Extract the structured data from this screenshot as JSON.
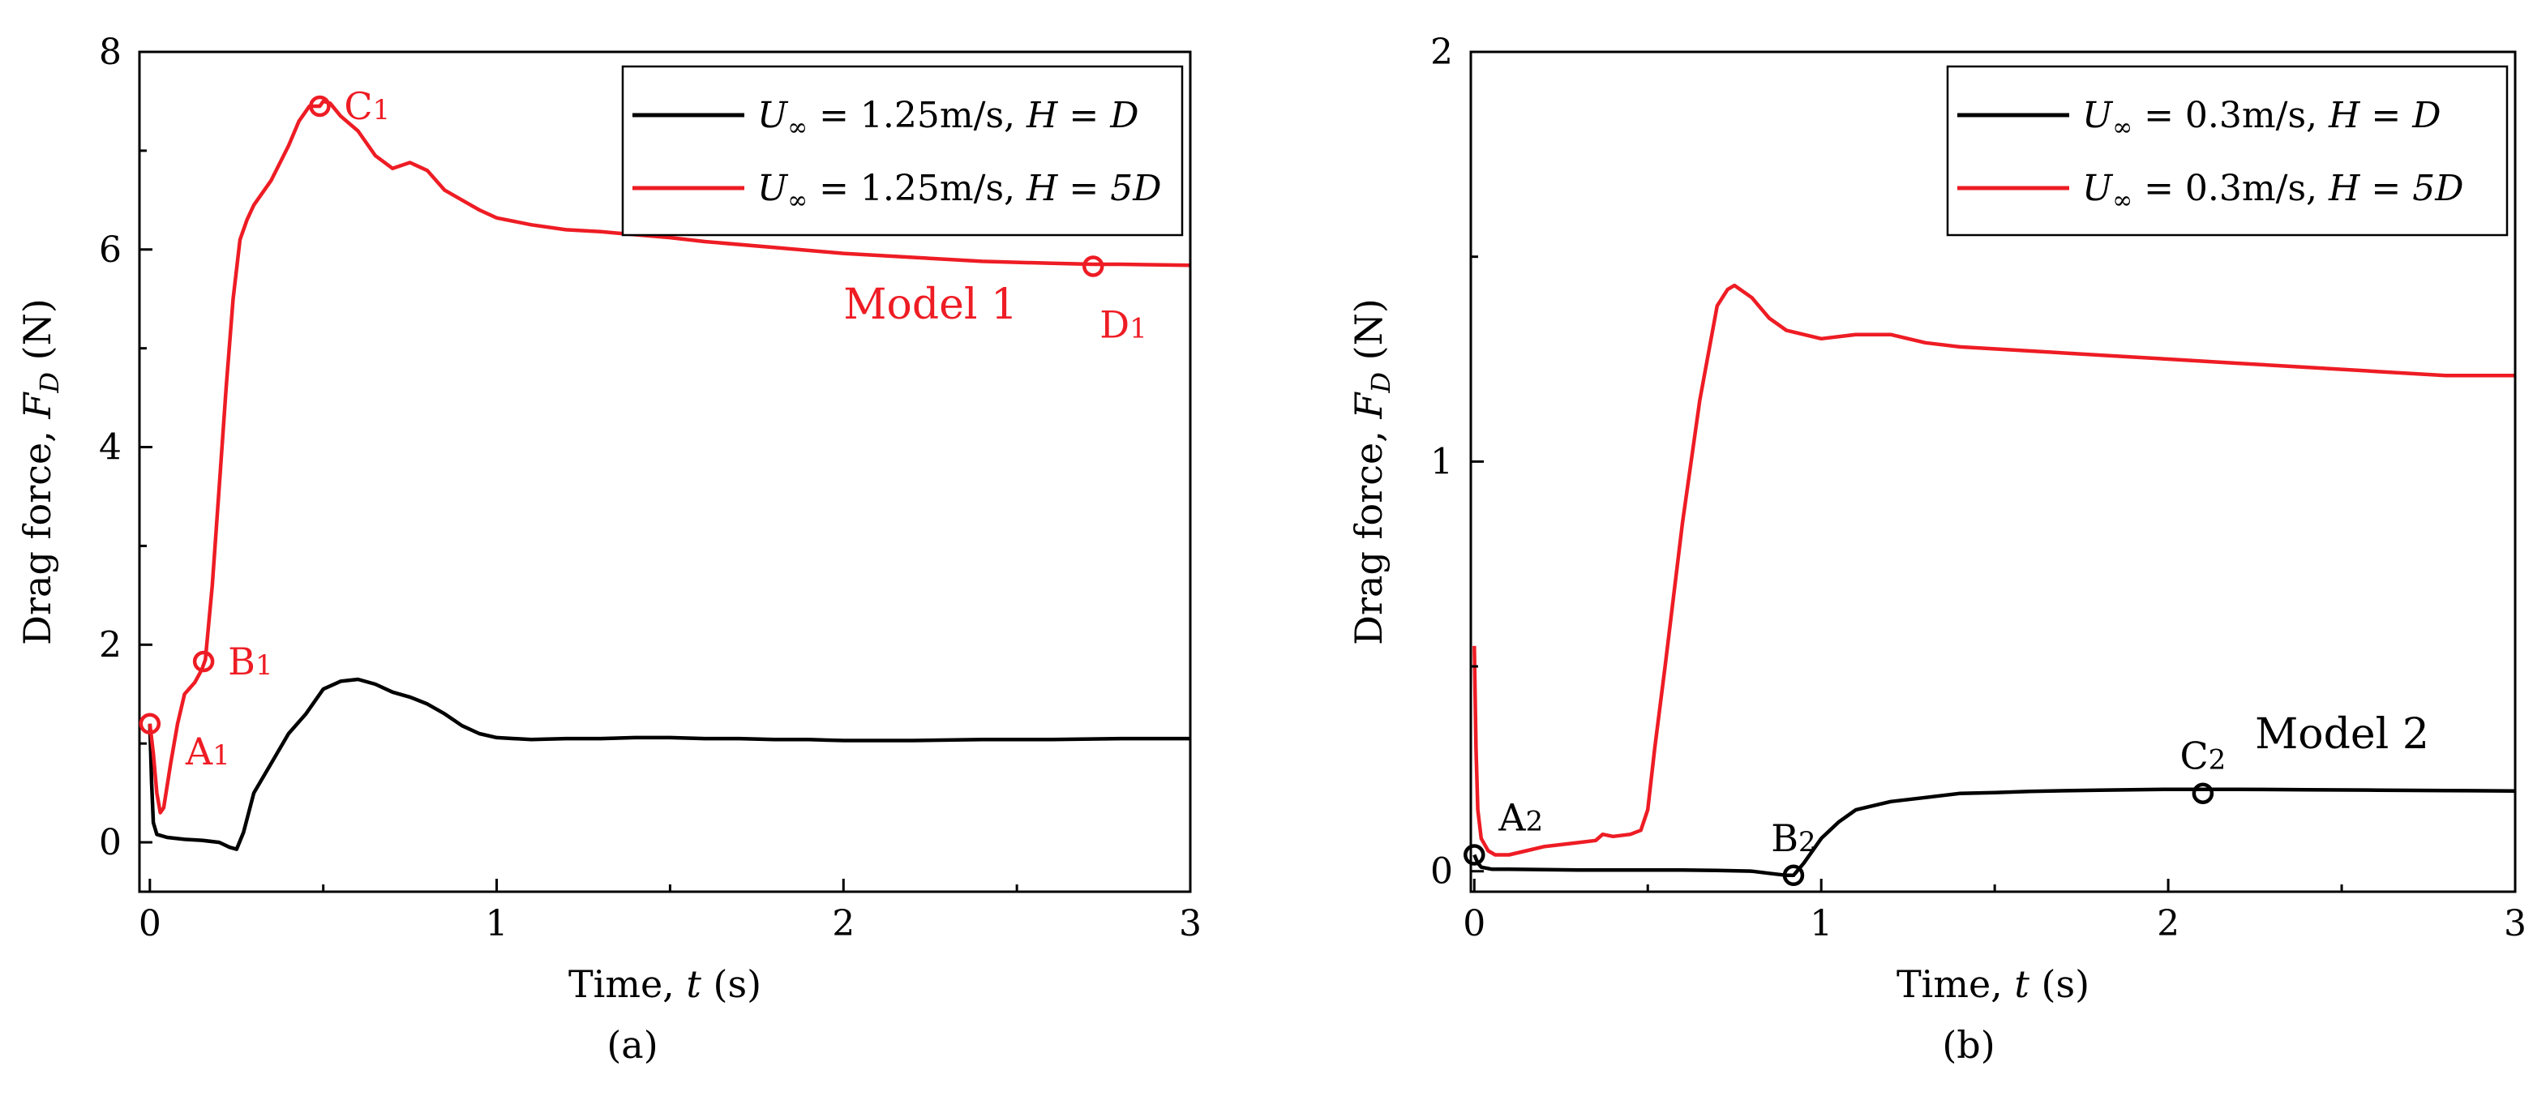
{
  "chart_data": [
    {
      "type": "line",
      "panel_label": "(a)",
      "xlabel_prefix": "Time, ",
      "xlabel_var": "t",
      "xlabel_suffix": " (s)",
      "ylabel_prefix": "Drag force, ",
      "ylabel_var": "F",
      "ylabel_sub": "D",
      "ylabel_suffix": " (N)",
      "xlim": [
        -0.03,
        3.0
      ],
      "ylim": [
        -0.5,
        8.0
      ],
      "xticks": [
        0,
        1,
        2,
        3
      ],
      "xtick_labels": [
        "0",
        "1",
        "2",
        "3"
      ],
      "yticks": [
        0,
        2,
        4,
        6,
        8
      ],
      "ytick_labels": [
        "0",
        "2",
        "4",
        "6",
        "8"
      ],
      "grid": false,
      "legend_position": "top-right",
      "series": [
        {
          "name": "U∞ = 1.25m/s, H = D",
          "legend": {
            "u": "U",
            "sub": "∞",
            "eq": " = 1.25m/s, ",
            "h": "H",
            "eq2": " = ",
            "end": "D"
          },
          "color": "#000000",
          "x": [
            0,
            0.005,
            0.01,
            0.02,
            0.05,
            0.1,
            0.15,
            0.2,
            0.23,
            0.25,
            0.27,
            0.3,
            0.35,
            0.4,
            0.45,
            0.5,
            0.55,
            0.6,
            0.65,
            0.7,
            0.75,
            0.8,
            0.85,
            0.9,
            0.95,
            1.0,
            1.05,
            1.1,
            1.2,
            1.3,
            1.4,
            1.5,
            1.6,
            1.7,
            1.8,
            1.9,
            2.0,
            2.1,
            2.2,
            2.4,
            2.6,
            2.8,
            3.0
          ],
          "y": [
            1.2,
            0.6,
            0.2,
            0.08,
            0.05,
            0.03,
            0.02,
            0.0,
            -0.05,
            -0.07,
            0.1,
            0.5,
            0.8,
            1.1,
            1.3,
            1.55,
            1.63,
            1.65,
            1.6,
            1.52,
            1.47,
            1.4,
            1.3,
            1.18,
            1.1,
            1.06,
            1.05,
            1.04,
            1.05,
            1.05,
            1.06,
            1.06,
            1.05,
            1.05,
            1.04,
            1.04,
            1.03,
            1.03,
            1.03,
            1.04,
            1.04,
            1.05,
            1.05
          ]
        },
        {
          "name": "U∞ = 1.25m/s, H = 5D",
          "legend": {
            "u": "U",
            "sub": "∞",
            "eq": " = 1.25m/s, ",
            "h": "H",
            "eq2": " = ",
            "end": "5D"
          },
          "color": "#ee1c24",
          "x": [
            0,
            0.01,
            0.02,
            0.03,
            0.04,
            0.06,
            0.08,
            0.1,
            0.13,
            0.15,
            0.16,
            0.18,
            0.2,
            0.22,
            0.24,
            0.26,
            0.28,
            0.3,
            0.35,
            0.4,
            0.43,
            0.46,
            0.49,
            0.5,
            0.52,
            0.55,
            0.6,
            0.65,
            0.7,
            0.75,
            0.8,
            0.85,
            0.9,
            0.95,
            1.0,
            1.1,
            1.2,
            1.3,
            1.4,
            1.5,
            1.6,
            1.8,
            2.0,
            2.2,
            2.4,
            2.6,
            2.72,
            2.8,
            3.0
          ],
          "y": [
            1.2,
            0.9,
            0.5,
            0.3,
            0.35,
            0.8,
            1.2,
            1.5,
            1.62,
            1.75,
            1.85,
            2.6,
            3.6,
            4.6,
            5.5,
            6.1,
            6.3,
            6.45,
            6.7,
            7.05,
            7.3,
            7.45,
            7.45,
            7.5,
            7.48,
            7.35,
            7.2,
            6.95,
            6.82,
            6.88,
            6.8,
            6.6,
            6.5,
            6.4,
            6.32,
            6.25,
            6.2,
            6.18,
            6.15,
            6.12,
            6.08,
            6.02,
            5.96,
            5.92,
            5.88,
            5.86,
            5.85,
            5.85,
            5.84
          ]
        }
      ],
      "markers": [
        {
          "label": "A",
          "sub": "1",
          "x": 0.0,
          "y": 1.2,
          "color": "#ee1c24",
          "label_side": "below-right"
        },
        {
          "label": "B",
          "sub": "1",
          "x": 0.155,
          "y": 1.83,
          "color": "#ee1c24",
          "label_side": "right"
        },
        {
          "label": "C",
          "sub": "1",
          "x": 0.49,
          "y": 7.45,
          "color": "#ee1c24",
          "label_side": "right"
        },
        {
          "label": "D",
          "sub": "1",
          "x": 2.72,
          "y": 5.83,
          "color": "#ee1c24",
          "label_side": "below"
        }
      ],
      "annotations": [
        {
          "text": "Model 1",
          "x": 2.0,
          "y": 5.3,
          "color": "#ee1c24"
        }
      ]
    },
    {
      "type": "line",
      "panel_label": "(b)",
      "xlabel_prefix": "Time, ",
      "xlabel_var": "t",
      "xlabel_suffix": " (s)",
      "ylabel_prefix": "Drag force, ",
      "ylabel_var": "F",
      "ylabel_sub": "D",
      "ylabel_suffix": " (N)",
      "xlim": [
        -0.01,
        3.0
      ],
      "ylim": [
        -0.05,
        2.0
      ],
      "xticks": [
        0,
        1,
        2,
        3
      ],
      "xtick_labels": [
        "0",
        "1",
        "2",
        "3"
      ],
      "yticks": [
        0,
        1,
        2
      ],
      "ytick_labels": [
        "0",
        "1",
        "2"
      ],
      "grid": false,
      "legend_position": "top-right",
      "series": [
        {
          "name": "U∞ = 0.3m/s, H = D",
          "legend": {
            "u": "U",
            "sub": "∞",
            "eq": " = 0.3m/s, ",
            "h": "H",
            "eq2": " = ",
            "end": "D"
          },
          "color": "#000000",
          "x": [
            0,
            0.01,
            0.02,
            0.05,
            0.1,
            0.2,
            0.3,
            0.4,
            0.5,
            0.6,
            0.7,
            0.8,
            0.85,
            0.9,
            0.92,
            0.95,
            1.0,
            1.05,
            1.1,
            1.2,
            1.3,
            1.4,
            1.5,
            1.6,
            1.8,
            2.0,
            2.1,
            2.2,
            2.4,
            2.6,
            2.8,
            3.0
          ],
          "y": [
            0.04,
            0.02,
            0.01,
            0.005,
            0.005,
            0.004,
            0.003,
            0.003,
            0.003,
            0.003,
            0.002,
            0.0,
            -0.005,
            -0.01,
            -0.01,
            0.02,
            0.08,
            0.12,
            0.15,
            0.17,
            0.18,
            0.19,
            0.192,
            0.195,
            0.198,
            0.2,
            0.2,
            0.2,
            0.199,
            0.198,
            0.197,
            0.196
          ]
        },
        {
          "name": "U∞ = 0.3m/s, H = 5D",
          "legend": {
            "u": "U",
            "sub": "∞",
            "eq": " = 0.3m/s, ",
            "h": "H",
            "eq2": " = ",
            "end": "5D"
          },
          "color": "#ee1c24",
          "x": [
            0,
            0.005,
            0.01,
            0.02,
            0.04,
            0.06,
            0.1,
            0.15,
            0.2,
            0.25,
            0.3,
            0.35,
            0.37,
            0.4,
            0.45,
            0.48,
            0.5,
            0.52,
            0.55,
            0.6,
            0.65,
            0.7,
            0.73,
            0.75,
            0.8,
            0.85,
            0.9,
            1.0,
            1.1,
            1.2,
            1.3,
            1.4,
            1.6,
            1.8,
            2.0,
            2.2,
            2.4,
            2.6,
            2.8,
            3.0
          ],
          "y": [
            0.55,
            0.3,
            0.15,
            0.08,
            0.05,
            0.04,
            0.04,
            0.05,
            0.06,
            0.065,
            0.07,
            0.075,
            0.09,
            0.085,
            0.09,
            0.1,
            0.15,
            0.3,
            0.5,
            0.85,
            1.15,
            1.38,
            1.42,
            1.43,
            1.4,
            1.35,
            1.32,
            1.3,
            1.31,
            1.31,
            1.29,
            1.28,
            1.27,
            1.26,
            1.25,
            1.24,
            1.23,
            1.22,
            1.21,
            1.21
          ]
        }
      ],
      "markers": [
        {
          "label": "A",
          "sub": "2",
          "x": 0.0,
          "y": 0.04,
          "color": "#000000",
          "label_side": "above-right"
        },
        {
          "label": "B",
          "sub": "2",
          "x": 0.92,
          "y": -0.01,
          "color": "#000000",
          "label_side": "above"
        },
        {
          "label": "C",
          "sub": "2",
          "x": 2.1,
          "y": 0.19,
          "color": "#000000",
          "label_side": "above"
        }
      ],
      "annotations": [
        {
          "text": "Model 2",
          "x": 2.25,
          "y": 0.3,
          "color": "#000000"
        }
      ]
    }
  ]
}
